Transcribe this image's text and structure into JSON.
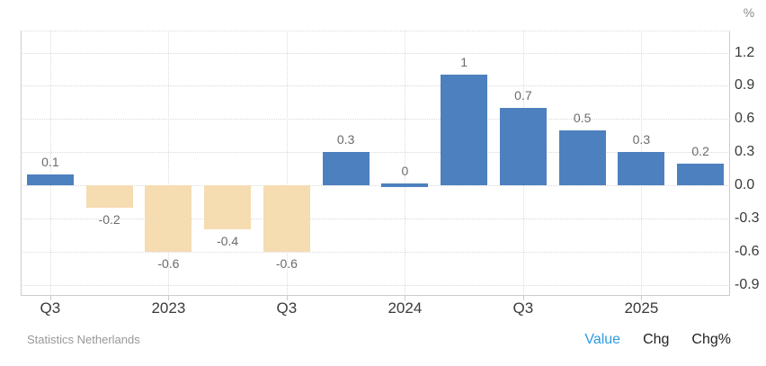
{
  "chart_data": {
    "type": "bar",
    "title": "",
    "xlabel": "",
    "ylabel": "%",
    "ylim": [
      -1.0,
      1.4
    ],
    "grid": true,
    "legend_position": "none",
    "y_axis": {
      "unit": "%",
      "side": "right",
      "ticks": [
        {
          "value": 1.2,
          "label": "1.2"
        },
        {
          "value": 0.9,
          "label": "0.9"
        },
        {
          "value": 0.6,
          "label": "0.6"
        },
        {
          "value": 0.3,
          "label": "0.3"
        },
        {
          "value": 0.0,
          "label": "0.0"
        },
        {
          "value": -0.3,
          "label": "-0.3"
        },
        {
          "value": -0.6,
          "label": "-0.6"
        },
        {
          "value": -0.9,
          "label": "-0.9"
        }
      ]
    },
    "x_axis": {
      "ticks": [
        {
          "index": 0,
          "label": "Q3"
        },
        {
          "index": 2,
          "label": "2023"
        },
        {
          "index": 4,
          "label": "Q3"
        },
        {
          "index": 6,
          "label": "2024"
        },
        {
          "index": 8,
          "label": "Q3"
        },
        {
          "index": 10,
          "label": "2025"
        }
      ]
    },
    "bars": [
      {
        "value": 0.1,
        "label": "0.1",
        "color": "#4d80be"
      },
      {
        "value": -0.2,
        "label": "-0.2",
        "color": "#f5dcb1"
      },
      {
        "value": -0.6,
        "label": "-0.6",
        "color": "#f5dcb1"
      },
      {
        "value": -0.4,
        "label": "-0.4",
        "color": "#f5dcb1"
      },
      {
        "value": -0.6,
        "label": "-0.6",
        "color": "#f5dcb1"
      },
      {
        "value": 0.3,
        "label": "0.3",
        "color": "#4d80be"
      },
      {
        "value": 0,
        "label": "0",
        "color": "#4d80be"
      },
      {
        "value": 1,
        "label": "1",
        "color": "#4d80be"
      },
      {
        "value": 0.7,
        "label": "0.7",
        "color": "#4d80be"
      },
      {
        "value": 0.5,
        "label": "0.5",
        "color": "#4d80be"
      },
      {
        "value": 0.3,
        "label": "0.3",
        "color": "#4d80be"
      },
      {
        "value": 0.2,
        "label": "0.2",
        "color": "#4d80be"
      }
    ]
  },
  "footer": {
    "source": "Statistics Netherlands",
    "modes": [
      {
        "label": "Value",
        "active": true
      },
      {
        "label": "Chg",
        "active": false
      },
      {
        "label": "Chg%",
        "active": false
      }
    ]
  },
  "colors": {
    "positive_bar": "#4d80be",
    "negative_bar": "#f5dcb1",
    "active_mode_link": "#2f9be0",
    "gridline": "#d9d9d9",
    "axis_border": "#cccccc",
    "data_label": "#6b6b6b",
    "axis_label": "#3a3a3a",
    "source_text": "#989898"
  }
}
